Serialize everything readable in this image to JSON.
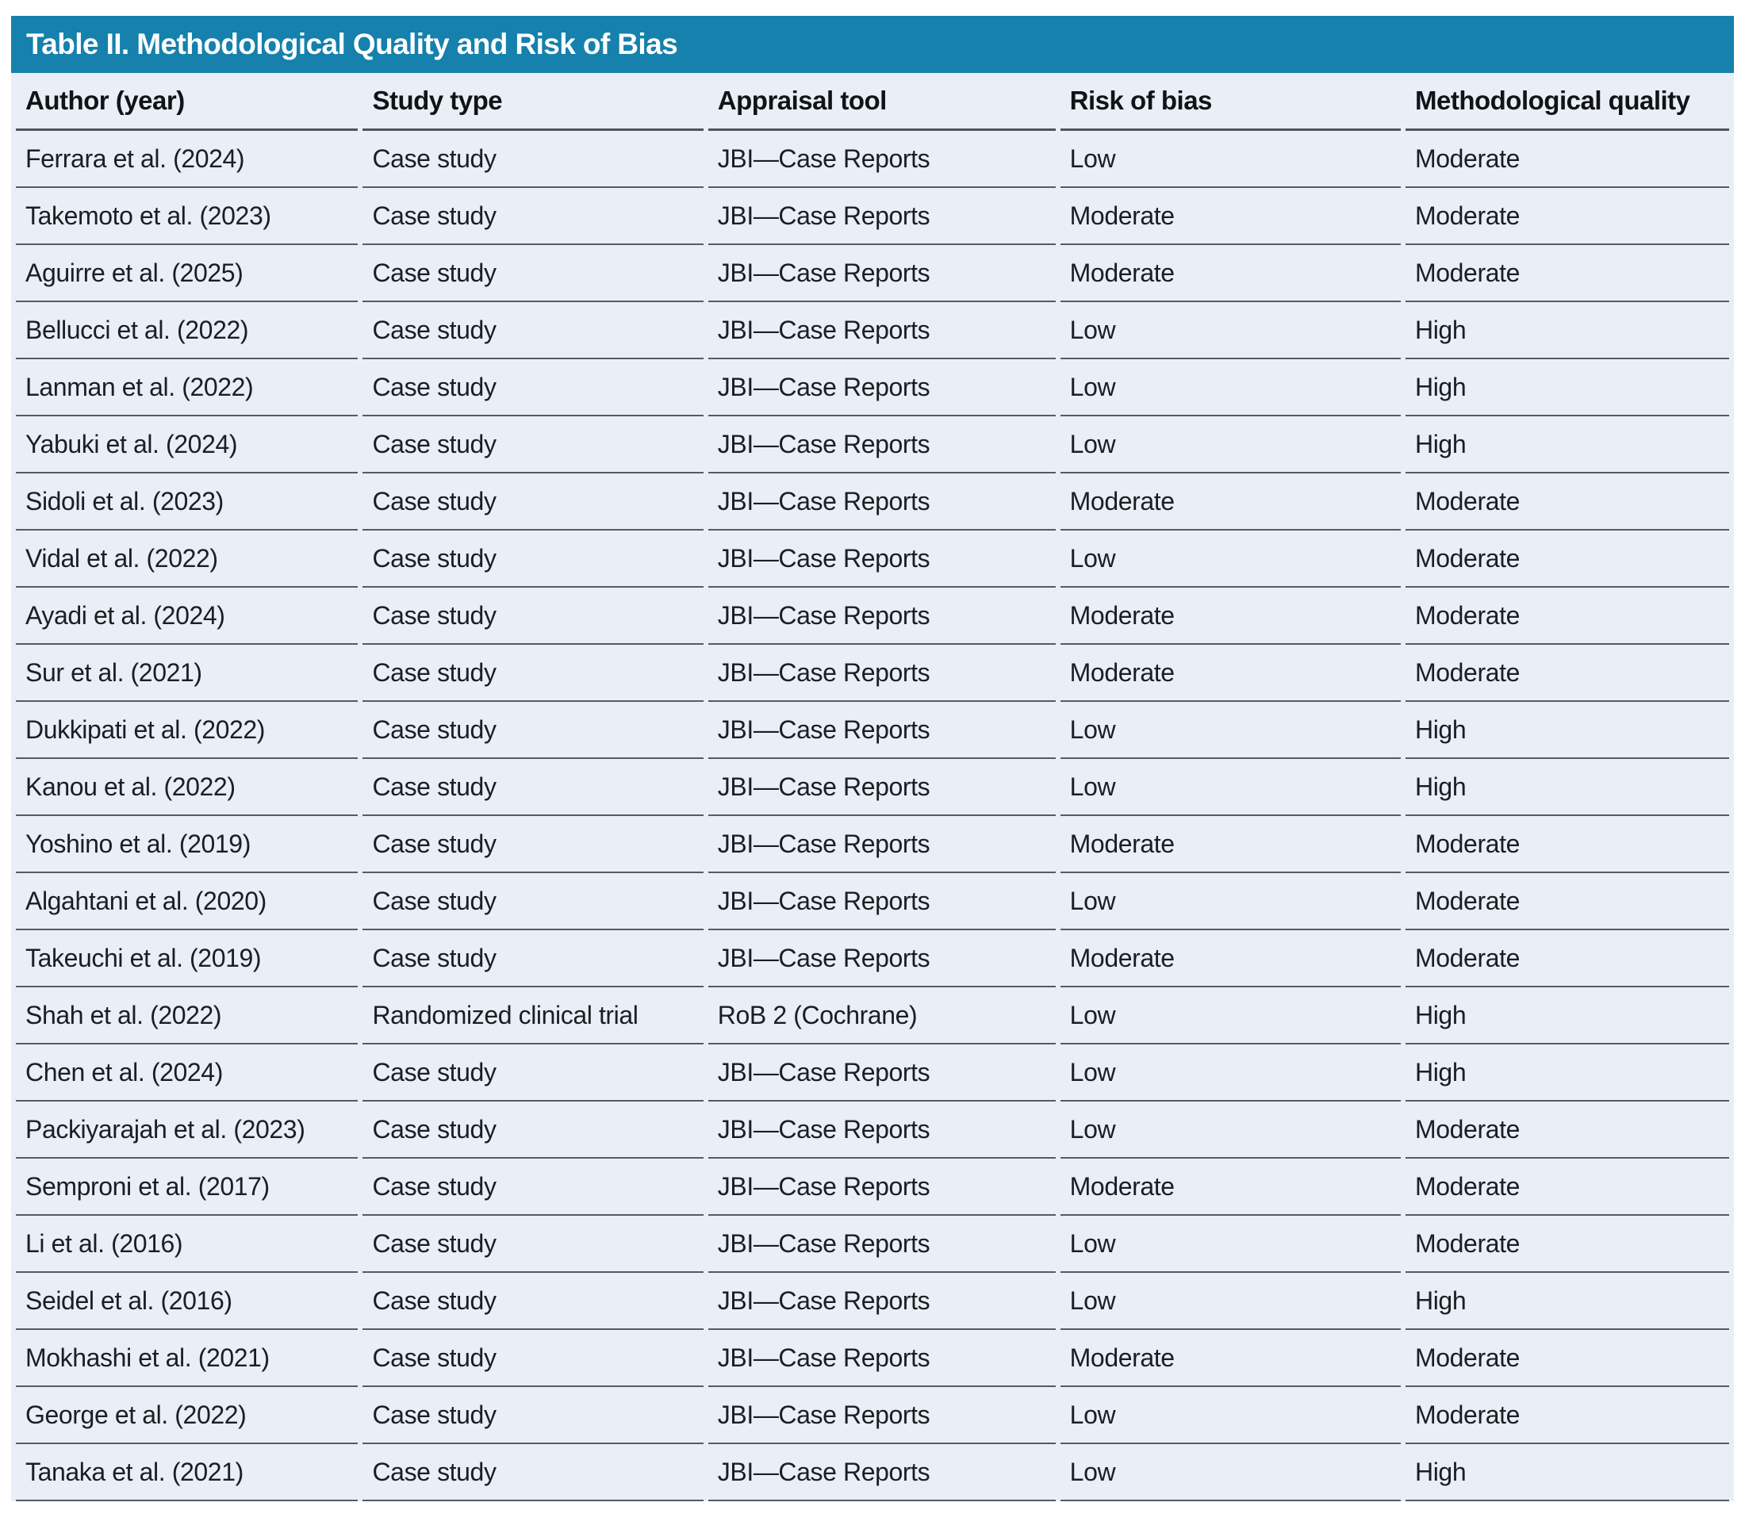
{
  "colors": {
    "title_bar_bg": "#1581ac",
    "title_text": "#ffffff",
    "row_bg": "#e9eef7",
    "rule": "#565b63",
    "text": "#1b1e22"
  },
  "table": {
    "title": "Table II. Methodological Quality and Risk of Bias",
    "columns": [
      "Author (year)",
      "Study type",
      "Appraisal tool",
      "Risk of bias",
      "Methodological quality"
    ],
    "rows": [
      {
        "author": "Ferrara et al. (2024)",
        "study_type": "Case study",
        "appraisal_tool": "JBI—Case Reports",
        "risk_of_bias": "Low",
        "methodological_quality": "Moderate"
      },
      {
        "author": "Takemoto et al. (2023)",
        "study_type": "Case study",
        "appraisal_tool": "JBI—Case Reports",
        "risk_of_bias": "Moderate",
        "methodological_quality": "Moderate"
      },
      {
        "author": "Aguirre et al. (2025)",
        "study_type": "Case study",
        "appraisal_tool": "JBI—Case Reports",
        "risk_of_bias": "Moderate",
        "methodological_quality": "Moderate"
      },
      {
        "author": "Bellucci et al. (2022)",
        "study_type": "Case study",
        "appraisal_tool": "JBI—Case Reports",
        "risk_of_bias": "Low",
        "methodological_quality": "High"
      },
      {
        "author": "Lanman et al. (2022)",
        "study_type": "Case study",
        "appraisal_tool": "JBI—Case Reports",
        "risk_of_bias": "Low",
        "methodological_quality": "High"
      },
      {
        "author": "Yabuki et al. (2024)",
        "study_type": "Case study",
        "appraisal_tool": "JBI—Case Reports",
        "risk_of_bias": "Low",
        "methodological_quality": "High"
      },
      {
        "author": "Sidoli et al. (2023)",
        "study_type": "Case study",
        "appraisal_tool": "JBI—Case Reports",
        "risk_of_bias": "Moderate",
        "methodological_quality": "Moderate"
      },
      {
        "author": "Vidal et al. (2022)",
        "study_type": "Case study",
        "appraisal_tool": "JBI—Case Reports",
        "risk_of_bias": "Low",
        "methodological_quality": "Moderate"
      },
      {
        "author": "Ayadi et al. (2024)",
        "study_type": "Case study",
        "appraisal_tool": "JBI—Case Reports",
        "risk_of_bias": "Moderate",
        "methodological_quality": "Moderate"
      },
      {
        "author": "Sur et al. (2021)",
        "study_type": "Case study",
        "appraisal_tool": "JBI—Case Reports",
        "risk_of_bias": "Moderate",
        "methodological_quality": "Moderate"
      },
      {
        "author": "Dukkipati et al. (2022)",
        "study_type": "Case study",
        "appraisal_tool": "JBI—Case Reports",
        "risk_of_bias": "Low",
        "methodological_quality": "High"
      },
      {
        "author": "Kanou et al. (2022)",
        "study_type": "Case study",
        "appraisal_tool": "JBI—Case Reports",
        "risk_of_bias": "Low",
        "methodological_quality": "High"
      },
      {
        "author": "Yoshino et al. (2019)",
        "study_type": "Case study",
        "appraisal_tool": "JBI—Case Reports",
        "risk_of_bias": "Moderate",
        "methodological_quality": "Moderate"
      },
      {
        "author": "Algahtani et al. (2020)",
        "study_type": "Case study",
        "appraisal_tool": "JBI—Case Reports",
        "risk_of_bias": "Low",
        "methodological_quality": "Moderate"
      },
      {
        "author": "Takeuchi et al. (2019)",
        "study_type": "Case study",
        "appraisal_tool": "JBI—Case Reports",
        "risk_of_bias": "Moderate",
        "methodological_quality": "Moderate"
      },
      {
        "author": "Shah et al. (2022)",
        "study_type": "Randomized clinical trial",
        "appraisal_tool": "RoB 2 (Cochrane)",
        "risk_of_bias": "Low",
        "methodological_quality": "High"
      },
      {
        "author": "Chen et al. (2024)",
        "study_type": "Case study",
        "appraisal_tool": "JBI—Case Reports",
        "risk_of_bias": "Low",
        "methodological_quality": "High"
      },
      {
        "author": "Packiyarajah et al. (2023)",
        "study_type": "Case study",
        "appraisal_tool": "JBI—Case Reports",
        "risk_of_bias": "Low",
        "methodological_quality": "Moderate"
      },
      {
        "author": "Semproni et al. (2017)",
        "study_type": "Case study",
        "appraisal_tool": "JBI—Case Reports",
        "risk_of_bias": "Moderate",
        "methodological_quality": "Moderate"
      },
      {
        "author": "Li et al. (2016)",
        "study_type": "Case study",
        "appraisal_tool": "JBI—Case Reports",
        "risk_of_bias": "Low",
        "methodological_quality": "Moderate"
      },
      {
        "author": "Seidel et al. (2016)",
        "study_type": "Case study",
        "appraisal_tool": "JBI—Case Reports",
        "risk_of_bias": "Low",
        "methodological_quality": "High"
      },
      {
        "author": "Mokhashi et al. (2021)",
        "study_type": "Case study",
        "appraisal_tool": "JBI—Case Reports",
        "risk_of_bias": "Moderate",
        "methodological_quality": "Moderate"
      },
      {
        "author": "George et al. (2022)",
        "study_type": "Case study",
        "appraisal_tool": "JBI—Case Reports",
        "risk_of_bias": "Low",
        "methodological_quality": "Moderate"
      },
      {
        "author": "Tanaka et al. (2021)",
        "study_type": "Case study",
        "appraisal_tool": "JBI—Case Reports",
        "risk_of_bias": "Low",
        "methodological_quality": "High"
      }
    ]
  }
}
